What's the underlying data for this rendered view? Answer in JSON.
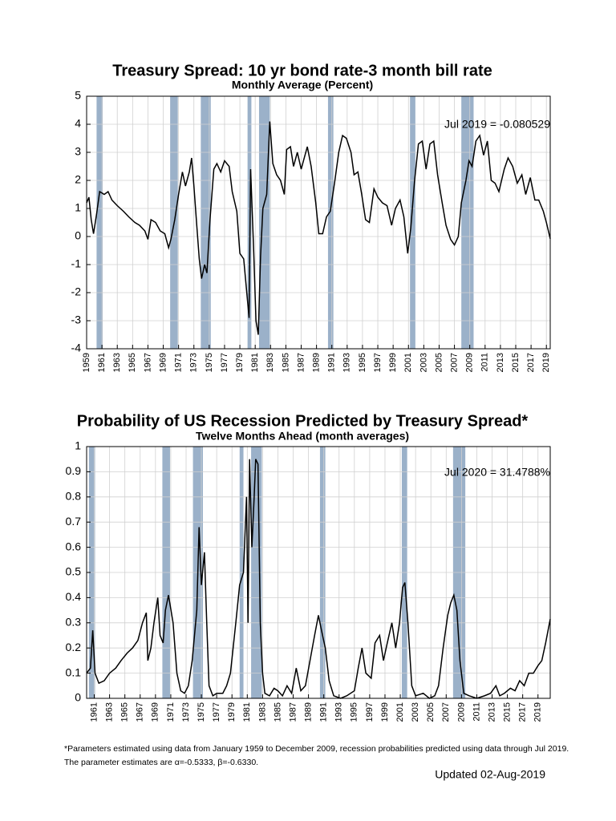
{
  "chart_data": [
    {
      "type": "line",
      "title": "Treasury Spread: 10 yr bond rate-3 month bill rate",
      "subtitle": "Monthly Average (Percent)",
      "annotation": "Jul 2019 = -0.080529",
      "color": "#000000",
      "grid": true,
      "recession_color": "#9bb1c9",
      "recessions": [
        [
          1960.3,
          1961.1
        ],
        [
          1969.9,
          1970.9
        ],
        [
          1973.9,
          1975.2
        ],
        [
          1980.0,
          1980.5
        ],
        [
          1981.5,
          1982.9
        ],
        [
          1990.5,
          1991.2
        ],
        [
          2001.2,
          2001.9
        ],
        [
          2007.9,
          2009.5
        ]
      ],
      "xlim": [
        1959,
        2019.5
      ],
      "ylim": [
        -4,
        5
      ],
      "xticks": [
        1959,
        1961,
        1963,
        1965,
        1967,
        1969,
        1971,
        1973,
        1975,
        1977,
        1979,
        1981,
        1983,
        1985,
        1987,
        1989,
        1991,
        1993,
        1995,
        1997,
        1999,
        2001,
        2003,
        2005,
        2007,
        2009,
        2011,
        2013,
        2015,
        2017,
        2019
      ],
      "yticks": [
        -4,
        -3,
        -2,
        -1,
        0,
        1,
        2,
        3,
        4,
        5
      ],
      "x": [
        1959.0,
        1959.3,
        1959.6,
        1959.9,
        1960.3,
        1960.7,
        1961.3,
        1961.8,
        1962.3,
        1963.0,
        1963.8,
        1964.5,
        1965.3,
        1965.9,
        1966.6,
        1967.0,
        1967.4,
        1968.0,
        1968.6,
        1969.2,
        1969.7,
        1970.0,
        1970.5,
        1971.0,
        1971.5,
        1971.9,
        1972.4,
        1972.7,
        1973.0,
        1973.4,
        1973.7,
        1974.0,
        1974.4,
        1974.7,
        1975.1,
        1975.6,
        1976.0,
        1976.5,
        1977.0,
        1977.6,
        1978.0,
        1978.6,
        1979.0,
        1979.5,
        1979.9,
        1980.2,
        1980.4,
        1980.8,
        1981.1,
        1981.4,
        1981.7,
        1982.0,
        1982.5,
        1982.9,
        1983.3,
        1983.8,
        1984.3,
        1984.8,
        1985.1,
        1985.6,
        1986.0,
        1986.5,
        1987.0,
        1987.8,
        1988.3,
        1988.9,
        1989.3,
        1989.8,
        1990.3,
        1990.8,
        1991.4,
        1991.9,
        1992.4,
        1992.9,
        1993.5,
        1993.9,
        1994.4,
        1994.9,
        1995.4,
        1995.9,
        1996.5,
        1997.0,
        1997.6,
        1998.2,
        1998.8,
        1999.3,
        1999.9,
        2000.4,
        2000.9,
        2001.3,
        2001.8,
        2002.3,
        2002.8,
        2003.3,
        2003.8,
        2004.3,
        2004.8,
        2005.4,
        2005.9,
        2006.5,
        2007.0,
        2007.5,
        2007.9,
        2008.5,
        2008.9,
        2009.3,
        2009.8,
        2010.3,
        2010.8,
        2011.3,
        2011.8,
        2012.3,
        2012.8,
        2013.5,
        2014.0,
        2014.6,
        2015.2,
        2015.8,
        2016.3,
        2016.9,
        2017.5,
        2018.0,
        2018.6,
        2019.0,
        2019.5
      ],
      "values": [
        1.2,
        1.4,
        0.6,
        0.1,
        0.8,
        1.6,
        1.5,
        1.6,
        1.3,
        1.1,
        0.9,
        0.7,
        0.5,
        0.4,
        0.2,
        -0.1,
        0.6,
        0.5,
        0.2,
        0.1,
        -0.4,
        -0.1,
        0.6,
        1.5,
        2.3,
        1.8,
        2.3,
        2.8,
        1.8,
        0.3,
        -0.8,
        -1.5,
        -1.0,
        -1.3,
        0.6,
        2.4,
        2.6,
        2.3,
        2.7,
        2.5,
        1.6,
        0.9,
        -0.6,
        -0.8,
        -2.0,
        -2.9,
        2.4,
        -0.5,
        -3.0,
        -3.5,
        -0.7,
        1.0,
        1.5,
        4.1,
        2.6,
        2.2,
        2.0,
        1.5,
        3.1,
        3.2,
        2.5,
        3.0,
        2.4,
        3.2,
        2.5,
        1.2,
        0.1,
        0.1,
        0.7,
        0.9,
        2.0,
        3.0,
        3.6,
        3.5,
        3.0,
        2.2,
        2.3,
        1.5,
        0.6,
        0.5,
        1.7,
        1.4,
        1.2,
        1.1,
        0.4,
        1.0,
        1.3,
        0.7,
        -0.6,
        0.3,
        2.0,
        3.3,
        3.4,
        2.4,
        3.3,
        3.4,
        2.2,
        1.2,
        0.4,
        -0.1,
        -0.3,
        0.0,
        1.2,
        2.0,
        2.7,
        2.5,
        3.4,
        3.6,
        2.9,
        3.4,
        2.0,
        1.9,
        1.6,
        2.4,
        2.8,
        2.5,
        1.9,
        2.2,
        1.5,
        2.1,
        1.3,
        1.3,
        0.9,
        0.5,
        -0.080529
      ]
    },
    {
      "type": "line",
      "title": "Probability of US Recession Predicted by Treasury Spread*",
      "subtitle": "Twelve Months Ahead (month averages)",
      "annotation": "Jul 2020 = 31.4788%",
      "color": "#000000",
      "grid": true,
      "recession_color": "#9bb1c9",
      "recessions": [
        [
          1960.3,
          1961.1
        ],
        [
          1969.9,
          1970.9
        ],
        [
          1973.9,
          1975.2
        ],
        [
          1980.0,
          1980.5
        ],
        [
          1981.5,
          1982.9
        ],
        [
          1990.5,
          1991.2
        ],
        [
          2001.2,
          2001.9
        ],
        [
          2007.9,
          2009.5
        ]
      ],
      "xlim": [
        1960,
        2020.6
      ],
      "ylim": [
        0,
        1
      ],
      "xticks": [
        1961,
        1963,
        1965,
        1967,
        1969,
        1971,
        1973,
        1975,
        1977,
        1979,
        1981,
        1983,
        1985,
        1987,
        1989,
        1991,
        1993,
        1995,
        1997,
        1999,
        2001,
        2003,
        2005,
        2007,
        2009,
        2011,
        2013,
        2015,
        2017,
        2019
      ],
      "yticks": [
        0,
        0.1,
        0.2,
        0.3,
        0.4,
        0.5,
        0.6,
        0.7,
        0.8,
        0.9,
        1
      ],
      "x": [
        1960.0,
        1960.5,
        1960.8,
        1961.1,
        1961.6,
        1962.3,
        1963.0,
        1963.8,
        1964.5,
        1965.3,
        1966.0,
        1966.7,
        1967.3,
        1967.8,
        1968.0,
        1968.4,
        1968.8,
        1969.3,
        1969.6,
        1970.0,
        1970.3,
        1970.7,
        1971.3,
        1971.8,
        1972.3,
        1972.8,
        1973.3,
        1973.8,
        1974.4,
        1974.7,
        1975.0,
        1975.4,
        1975.7,
        1976.0,
        1976.5,
        1977.0,
        1977.8,
        1978.3,
        1978.8,
        1979.5,
        1980.0,
        1980.5,
        1980.9,
        1981.1,
        1981.3,
        1981.6,
        1981.9,
        1982.1,
        1982.4,
        1982.7,
        1983.0,
        1983.3,
        1983.9,
        1984.5,
        1985.0,
        1985.6,
        1986.2,
        1986.8,
        1987.4,
        1988.0,
        1988.6,
        1989.2,
        1989.8,
        1990.3,
        1990.7,
        1991.2,
        1991.7,
        1992.3,
        1993.2,
        1994.0,
        1995.0,
        1995.5,
        1996.0,
        1996.5,
        1997.2,
        1997.7,
        1998.3,
        1998.8,
        1999.3,
        1999.9,
        2000.4,
        2000.9,
        2001.3,
        2001.6,
        2002.0,
        2002.5,
        2003.0,
        2004.0,
        2004.8,
        2005.5,
        2006.0,
        2006.6,
        2007.2,
        2007.6,
        2008.0,
        2008.4,
        2008.8,
        2009.3,
        2010.0,
        2011.0,
        2012.0,
        2012.8,
        2013.5,
        2014.0,
        2014.6,
        2015.4,
        2016.0,
        2016.6,
        2017.2,
        2017.8,
        2018.4,
        2019.0,
        2019.5,
        2020.0,
        2020.6
      ],
      "values": [
        0.1,
        0.12,
        0.27,
        0.1,
        0.06,
        0.07,
        0.1,
        0.12,
        0.15,
        0.18,
        0.2,
        0.23,
        0.3,
        0.34,
        0.15,
        0.2,
        0.3,
        0.4,
        0.25,
        0.22,
        0.35,
        0.41,
        0.3,
        0.1,
        0.03,
        0.02,
        0.05,
        0.15,
        0.35,
        0.68,
        0.45,
        0.58,
        0.3,
        0.05,
        0.01,
        0.02,
        0.02,
        0.05,
        0.1,
        0.3,
        0.45,
        0.5,
        0.8,
        0.3,
        0.95,
        0.6,
        0.8,
        0.95,
        0.93,
        0.3,
        0.1,
        0.02,
        0.01,
        0.04,
        0.03,
        0.01,
        0.05,
        0.02,
        0.12,
        0.03,
        0.05,
        0.15,
        0.25,
        0.33,
        0.27,
        0.2,
        0.07,
        0.01,
        0,
        0.01,
        0.03,
        0.12,
        0.2,
        0.1,
        0.08,
        0.22,
        0.25,
        0.15,
        0.22,
        0.3,
        0.2,
        0.3,
        0.44,
        0.46,
        0.3,
        0.05,
        0.01,
        0.02,
        0,
        0.01,
        0.05,
        0.2,
        0.33,
        0.38,
        0.41,
        0.35,
        0.15,
        0.02,
        0.01,
        0,
        0.01,
        0.02,
        0.05,
        0.01,
        0.02,
        0.04,
        0.03,
        0.07,
        0.05,
        0.1,
        0.1,
        0.13,
        0.15,
        0.22,
        0.314788
      ]
    }
  ],
  "footnote": [
    "*Parameters estimated using data from January 1959 to December 2009, recession probabilities predicted using data through Jul 2019.",
    "The parameter estimates are α=-0.5333, β=-0.6330."
  ],
  "updated": "Updated 02-Aug-2019"
}
